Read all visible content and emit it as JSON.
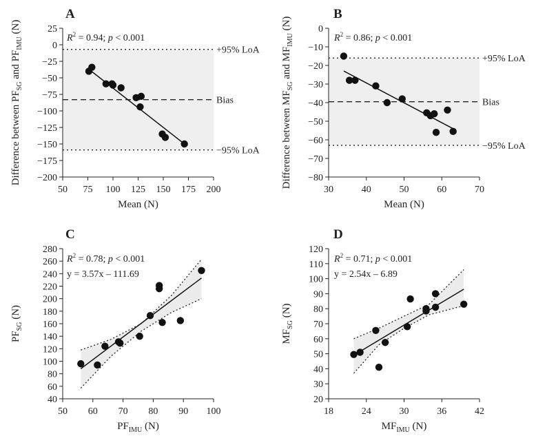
{
  "chart_data": [
    {
      "panel": "A",
      "type": "scatter",
      "subtype": "bland-altman",
      "title": "A",
      "ylabel": {
        "main": "Difference between PF",
        "sub1": "SG",
        "mid": " and PF",
        "sub2": "IMU",
        "end": " (N)"
      },
      "xlabel": "Mean (N)",
      "annotation": {
        "r2": "= 0.94;",
        "p": "< 0.001"
      },
      "xlim": [
        50,
        200
      ],
      "ylim": [
        -200,
        25
      ],
      "xticks": [
        50,
        75,
        100,
        125,
        150,
        175,
        200
      ],
      "yticks": [
        25,
        0,
        -25,
        -50,
        -75,
        -100,
        -125,
        -150,
        -175,
        -200
      ],
      "points": [
        [
          76,
          -40
        ],
        [
          79,
          -34
        ],
        [
          93,
          -59
        ],
        [
          99,
          -59
        ],
        [
          100,
          -61
        ],
        [
          108,
          -65
        ],
        [
          123,
          -80
        ],
        [
          127,
          -94
        ],
        [
          128,
          -78
        ],
        [
          149,
          -135
        ],
        [
          152,
          -140
        ],
        [
          171,
          -150
        ]
      ],
      "fit": [
        [
          76,
          -37
        ],
        [
          171,
          -150
        ]
      ],
      "hlines": [
        {
          "value": -7,
          "label": "+95% LoA",
          "style": "dotted"
        },
        {
          "value": -83,
          "label": "Bias",
          "style": "dashed"
        },
        {
          "value": -159,
          "label": "−95% LoA",
          "style": "dotted"
        }
      ],
      "band": [
        -159,
        -7
      ]
    },
    {
      "panel": "B",
      "type": "scatter",
      "subtype": "bland-altman",
      "title": "B",
      "ylabel": {
        "main": "Difference between MF",
        "sub1": "SG",
        "mid": " and MF",
        "sub2": "IMU",
        "end": " (N)"
      },
      "xlabel": "Mean (N)",
      "annotation": {
        "r2": "= 0.86;",
        "p": "< 0.001"
      },
      "xlim": [
        30,
        70
      ],
      "ylim": [
        -80,
        0
      ],
      "xticks": [
        30,
        40,
        50,
        60,
        70
      ],
      "yticks": [
        0,
        -10,
        -20,
        -30,
        -40,
        -50,
        -60,
        -70,
        -80
      ],
      "points": [
        [
          34,
          -15
        ],
        [
          35.5,
          -28
        ],
        [
          37,
          -28
        ],
        [
          42.5,
          -31
        ],
        [
          45.5,
          -40
        ],
        [
          49.5,
          -38
        ],
        [
          56,
          -45.5
        ],
        [
          57,
          -47
        ],
        [
          58,
          -46
        ],
        [
          58.5,
          -56
        ],
        [
          61.5,
          -44
        ],
        [
          63,
          -55.5
        ]
      ],
      "fit": [
        [
          34,
          -23
        ],
        [
          63,
          -54
        ]
      ],
      "hlines": [
        {
          "value": -16,
          "label": "+95% LoA",
          "style": "dotted"
        },
        {
          "value": -39.5,
          "label": "Bias",
          "style": "dashed"
        },
        {
          "value": -63,
          "label": "−95% LoA",
          "style": "dotted"
        }
      ],
      "band": [
        -63,
        -16
      ]
    },
    {
      "panel": "C",
      "type": "scatter",
      "subtype": "regression",
      "title": "C",
      "ylabel": {
        "main": "PF",
        "sub1": "SG",
        "end": " (N)"
      },
      "xlabel": {
        "main": "PF",
        "sub": "IMU",
        "end": " (N)"
      },
      "annotation": {
        "r2": "= 0.78;",
        "p": "< 0.001",
        "equation": "y = 3.57x – 111.69"
      },
      "xlim": [
        50,
        100
      ],
      "ylim": [
        40,
        280
      ],
      "xticks": [
        50,
        60,
        70,
        80,
        90,
        100
      ],
      "yticks": [
        40,
        60,
        80,
        100,
        120,
        140,
        160,
        180,
        200,
        220,
        240,
        260,
        280
      ],
      "points": [
        [
          56,
          96
        ],
        [
          61.5,
          94
        ],
        [
          64,
          124
        ],
        [
          68.5,
          131
        ],
        [
          69,
          129
        ],
        [
          75.5,
          140
        ],
        [
          79,
          173
        ],
        [
          82,
          221
        ],
        [
          82,
          216
        ],
        [
          83,
          162
        ],
        [
          89,
          165
        ],
        [
          96,
          245
        ]
      ],
      "fit": [
        [
          56,
          88
        ],
        [
          96,
          233
        ]
      ],
      "ci_upper": [
        [
          56,
          118
        ],
        [
          66,
          135
        ],
        [
          76,
          160
        ],
        [
          86,
          205
        ],
        [
          96,
          263
        ]
      ],
      "ci_lower": [
        [
          56,
          57
        ],
        [
          66,
          108
        ],
        [
          76,
          148
        ],
        [
          86,
          178
        ],
        [
          96,
          200
        ]
      ]
    },
    {
      "panel": "D",
      "type": "scatter",
      "subtype": "regression",
      "title": "D",
      "ylabel": {
        "main": "MF",
        "sub1": "SG",
        "end": " (N)"
      },
      "xlabel": {
        "main": "MF",
        "sub": "IMU",
        "end": " (N)"
      },
      "annotation": {
        "r2": "= 0.71;",
        "p": "< 0.001",
        "equation": "y = 2.54x – 6.89"
      },
      "xlim": [
        18,
        42
      ],
      "ylim": [
        20,
        120
      ],
      "xticks": [
        18,
        24,
        30,
        36,
        42
      ],
      "yticks": [
        20,
        30,
        40,
        50,
        60,
        70,
        80,
        90,
        100,
        110,
        120
      ],
      "points": [
        [
          22,
          49.5
        ],
        [
          23,
          51
        ],
        [
          25.5,
          65.5
        ],
        [
          26,
          41
        ],
        [
          27,
          57.5
        ],
        [
          30.5,
          68
        ],
        [
          31,
          86.5
        ],
        [
          33.5,
          78.5
        ],
        [
          33.5,
          80
        ],
        [
          35,
          90
        ],
        [
          35,
          81
        ],
        [
          39.5,
          83
        ]
      ],
      "fit": [
        [
          22,
          49
        ],
        [
          39.5,
          93
        ]
      ],
      "ci_upper": [
        [
          22,
          60
        ],
        [
          26,
          67
        ],
        [
          30,
          75
        ],
        [
          34,
          83
        ],
        [
          39.5,
          106
        ]
      ],
      "ci_lower": [
        [
          22,
          37
        ],
        [
          26,
          56
        ],
        [
          30,
          67
        ],
        [
          34,
          76
        ],
        [
          39.5,
          82
        ]
      ]
    }
  ]
}
